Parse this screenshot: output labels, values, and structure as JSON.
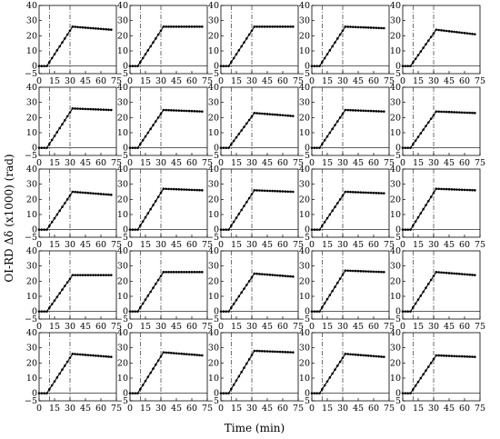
{
  "figure": {
    "xlabel": "Time (min)",
    "ylabel": "OI-RD Δδ (x1000) (rad)"
  },
  "colors": {
    "line": "#000000",
    "marker": "#000000",
    "dashed_marker_line": "#333333",
    "background": "#ffffff"
  },
  "chart_data": {
    "type": "line",
    "layout": "5x5 grid of small multiples",
    "xlim": [
      0,
      75
    ],
    "ylim": [
      -5,
      40
    ],
    "xticks": [
      0,
      15,
      30,
      45,
      60,
      75
    ],
    "yticks": [
      -5,
      0,
      10,
      20,
      30,
      40
    ],
    "xtick_labels": [
      "0",
      "15",
      "30",
      "45",
      "60",
      "75"
    ],
    "ytick_labels": [
      "−5",
      "0",
      "10",
      "20",
      "30",
      "40"
    ],
    "vertical_dash_dot_lines_x": [
      10,
      30
    ],
    "grid": false,
    "legend": "none",
    "x": [
      0,
      2.5,
      5,
      7.5,
      10,
      12.5,
      15,
      17.5,
      20,
      22.5,
      25,
      27.5,
      30,
      32.5,
      35,
      37.5,
      40,
      42.5,
      45,
      47.5,
      50,
      52.5,
      55,
      57.5,
      60,
      62.5,
      65,
      67.5,
      70
    ],
    "panels": [
      {
        "plateau": 26,
        "end": 24
      },
      {
        "plateau": 26,
        "end": 26
      },
      {
        "plateau": 26,
        "end": 26
      },
      {
        "plateau": 26,
        "end": 25
      },
      {
        "plateau": 24,
        "end": 21
      },
      {
        "plateau": 26,
        "end": 25
      },
      {
        "plateau": 25,
        "end": 24
      },
      {
        "plateau": 23,
        "end": 21
      },
      {
        "plateau": 25,
        "end": 24
      },
      {
        "plateau": 24,
        "end": 23
      },
      {
        "plateau": 25,
        "end": 23
      },
      {
        "plateau": 27,
        "end": 26
      },
      {
        "plateau": 26,
        "end": 25
      },
      {
        "plateau": 25,
        "end": 24
      },
      {
        "plateau": 27,
        "end": 26
      },
      {
        "plateau": 24,
        "end": 24
      },
      {
        "plateau": 26,
        "end": 26
      },
      {
        "plateau": 25,
        "end": 23
      },
      {
        "plateau": 27,
        "end": 26
      },
      {
        "plateau": 26,
        "end": 24
      },
      {
        "plateau": 26,
        "end": 24
      },
      {
        "plateau": 27,
        "end": 25
      },
      {
        "plateau": 28,
        "end": 27
      },
      {
        "plateau": 26,
        "end": 24
      },
      {
        "plateau": 25,
        "end": 24
      }
    ]
  }
}
